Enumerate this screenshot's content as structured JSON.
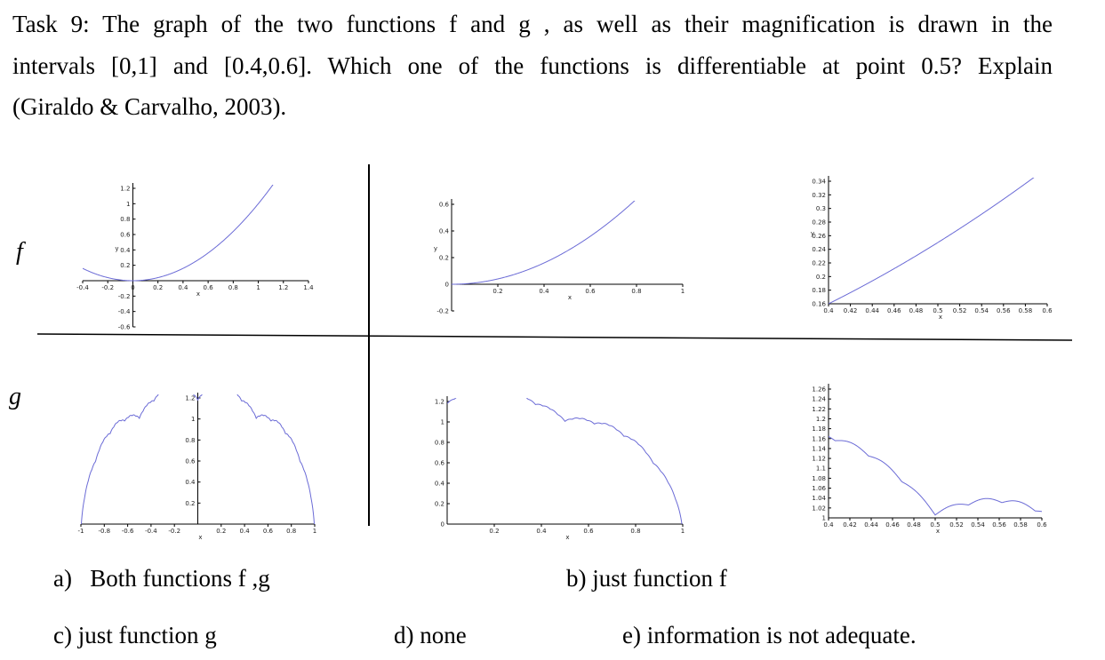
{
  "question": {
    "lines": [
      "Task 9: The graph of the two functions f and g , as well as their magnification is drawn in the",
      "intervals [0,1] and [0.4,0.6]. Which one of the functions is differentiable at point 0.5? Explain",
      "(Giraldo & Carvalho, 2003)."
    ]
  },
  "row_labels": [
    "f",
    "g"
  ],
  "panels": [
    {
      "function": "f",
      "xlim": [
        -0.4,
        1.4
      ],
      "ylim": [
        -0.6,
        1.2
      ],
      "xticks": [
        -0.4,
        -0.2,
        0,
        0.2,
        0.4,
        0.6,
        0.8,
        1,
        1.2,
        1.4
      ],
      "yticks": [
        -0.6,
        -0.4,
        -0.2,
        0.2,
        0.4,
        0.6,
        0.8,
        1,
        1.2
      ],
      "x_label": "x",
      "y_label": "y"
    },
    {
      "function": "f",
      "xlim": [
        0,
        1
      ],
      "ylim": [
        -0.2,
        0.6
      ],
      "xticks": [
        0.2,
        0.4,
        0.6,
        0.8,
        1
      ],
      "yticks": [
        -0.2,
        0,
        0.2,
        0.4,
        0.6
      ],
      "x_label": "x",
      "y_label": "y"
    },
    {
      "function": "f",
      "xlim": [
        0.4,
        0.6
      ],
      "ylim": [
        0.16,
        0.34
      ],
      "xticks": [
        0.4,
        0.42,
        0.44,
        0.46,
        0.48,
        0.5,
        0.52,
        0.54,
        0.56,
        0.58,
        0.6
      ],
      "yticks": [
        0.16,
        0.18,
        0.2,
        0.22,
        0.24,
        0.26,
        0.28,
        0.3,
        0.32,
        0.34
      ],
      "x_label": "x",
      "y_label": "y"
    },
    {
      "function": "g",
      "xlim": [
        -1,
        1
      ],
      "ylim": [
        0,
        1.2
      ],
      "xticks": [
        -1,
        -0.8,
        -0.6,
        -0.4,
        -0.2,
        0.2,
        0.4,
        0.6,
        0.8,
        1
      ],
      "yticks": [
        0.2,
        0.4,
        0.6,
        0.8,
        1,
        1.2
      ],
      "x_label": "x"
    },
    {
      "function": "g",
      "xlim": [
        0,
        1
      ],
      "ylim": [
        0,
        1.2
      ],
      "xticks": [
        0.2,
        0.4,
        0.6,
        0.8,
        1
      ],
      "yticks": [
        0,
        0.2,
        0.4,
        0.6,
        0.8,
        1,
        1.2
      ],
      "x_label": "x"
    },
    {
      "function": "g",
      "xlim": [
        0.4,
        0.6
      ],
      "ylim": [
        1,
        1.26
      ],
      "xticks": [
        0.4,
        0.42,
        0.44,
        0.46,
        0.48,
        0.5,
        0.52,
        0.54,
        0.56,
        0.58,
        0.6
      ],
      "yticks": [
        1,
        1.02,
        1.04,
        1.06,
        1.08,
        1.1,
        1.12,
        1.14,
        1.16,
        1.18,
        1.2,
        1.22,
        1.24,
        1.26
      ],
      "x_label": "x"
    }
  ],
  "options": [
    {
      "label": "a)",
      "text": "Both functions f ,g"
    },
    {
      "label": "b)",
      "text": "just function f"
    },
    {
      "label": "c)",
      "text": "just function g"
    },
    {
      "label": "d)",
      "text": "none"
    },
    {
      "label": "e)",
      "text": "information is not adequate."
    }
  ]
}
